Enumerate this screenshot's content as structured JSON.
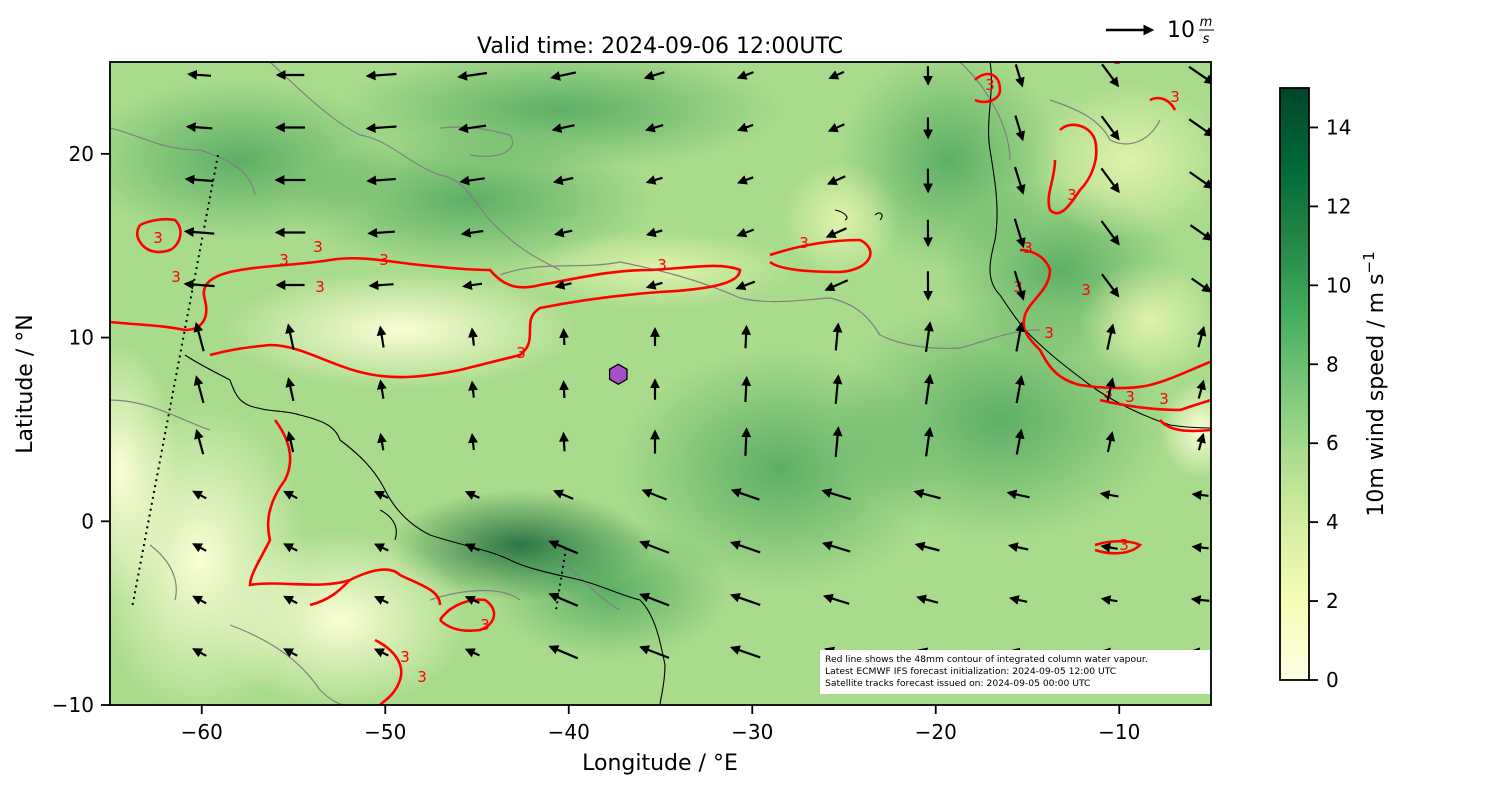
{
  "title": "Valid time: 2024-09-06 12:00UTC",
  "xlabel": "Longitude / °E",
  "ylabel": "Latitude / °N",
  "colorbar": {
    "label_main": "10m wind speed / m s",
    "label_exp": "−1",
    "range": [
      0,
      15
    ],
    "ticks": [
      0,
      2,
      4,
      6,
      8,
      10,
      12,
      14
    ],
    "tick_labels": [
      "0",
      "2",
      "4",
      "6",
      "8",
      "10",
      "12",
      "14"
    ],
    "colormap": "YlGn",
    "colors": [
      "#ffffe5",
      "#f7fcb9",
      "#d9f0a3",
      "#addd8e",
      "#78c679",
      "#41ab5d",
      "#238443",
      "#006837",
      "#004529"
    ]
  },
  "quiver_key": {
    "label": "10",
    "unit_num": "m",
    "unit_den": "s",
    "value": 10
  },
  "axes": {
    "xlim": [
      -65,
      -5
    ],
    "ylim": [
      -10,
      25
    ],
    "xticks": [
      -60,
      -50,
      -40,
      -30,
      -20,
      -10
    ],
    "xtick_labels": [
      "−60",
      "−50",
      "−40",
      "−30",
      "−20",
      "−10"
    ],
    "yticks": [
      -10,
      0,
      10,
      20
    ],
    "ytick_labels": [
      "−10",
      "0",
      "10",
      "20"
    ]
  },
  "contour_label": "3",
  "marker": {
    "shape": "hexagon",
    "lon": -37.3,
    "lat": 8.0,
    "color": "#a64dc8"
  },
  "annotation": [
    "Red line shows the 48mm contour of integrated column water vapour.",
    "Latest ECMWF IFS forecast initialization: 2024-09-05 12:00 UTC",
    "Satellite tracks forecast issued on: 2024-09-05 00:00 UTC"
  ],
  "colors": {
    "moisture_contour": "#ff0000",
    "coastline": "#000000",
    "secondary_contour": "#808080",
    "arrow": "#000000"
  }
}
